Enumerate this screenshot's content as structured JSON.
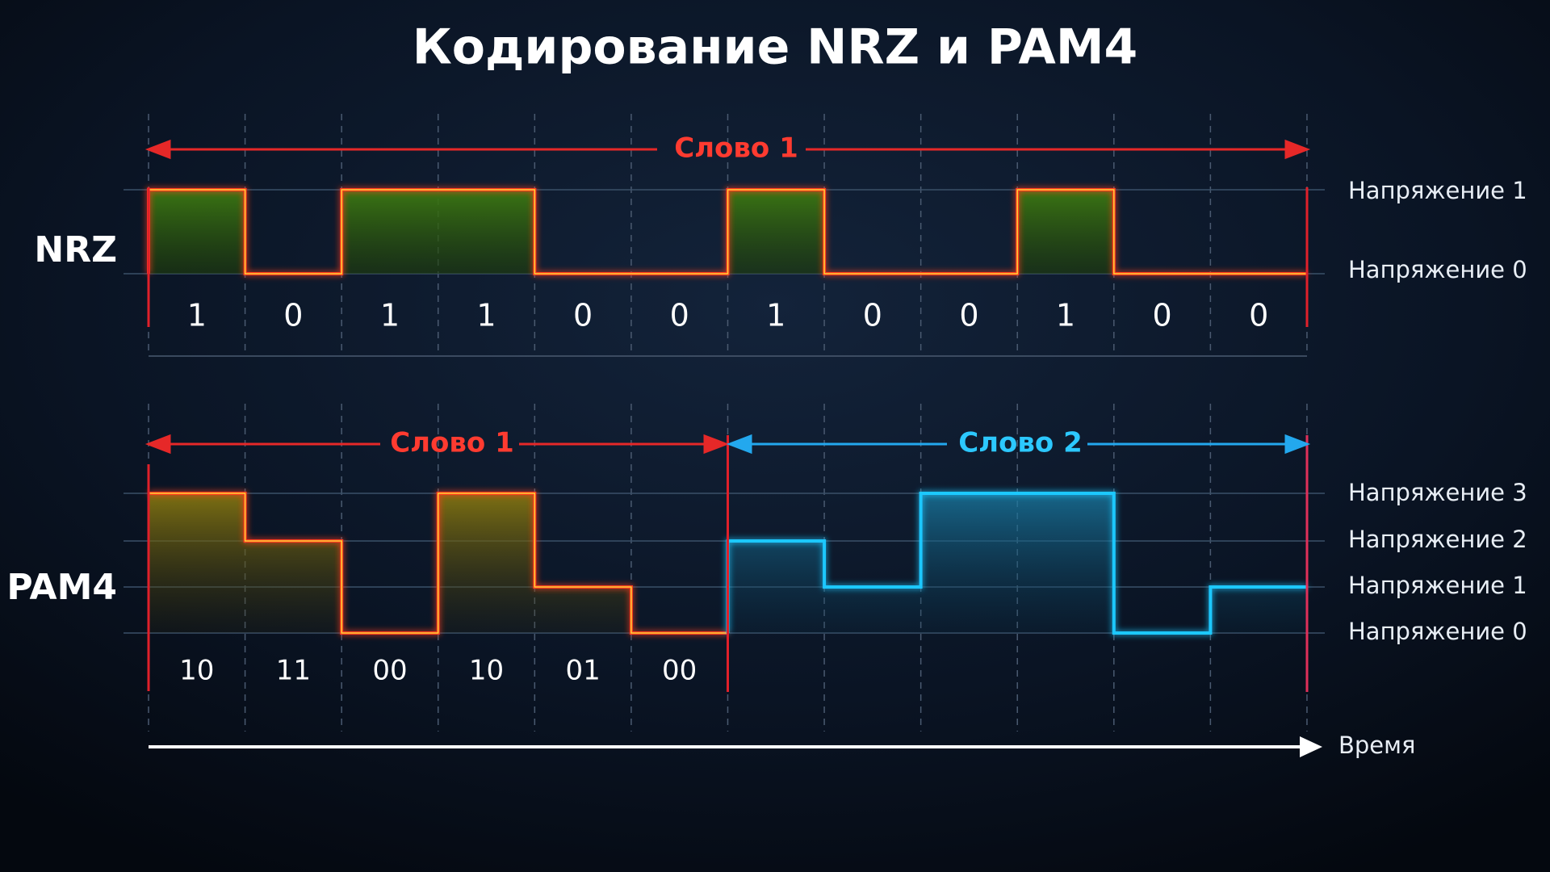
{
  "title": "Кодирование NRZ и PAM4",
  "nrz": {
    "label": "NRZ",
    "word": "Слово 1",
    "levels": [
      "Напряжение 1",
      "Напряжение 0"
    ],
    "bits": [
      "1",
      "0",
      "1",
      "1",
      "0",
      "0",
      "1",
      "0",
      "0",
      "1",
      "0",
      "0"
    ]
  },
  "pam4": {
    "label": "PAM4",
    "words": [
      "Слово 1",
      "Слово 2"
    ],
    "levels": [
      "Напряжение 3",
      "Напряжение 2",
      "Напряжение 1",
      "Напряжение 0"
    ],
    "symbols": [
      "10",
      "11",
      "00",
      "10",
      "01",
      "00"
    ]
  },
  "time": "Время"
}
